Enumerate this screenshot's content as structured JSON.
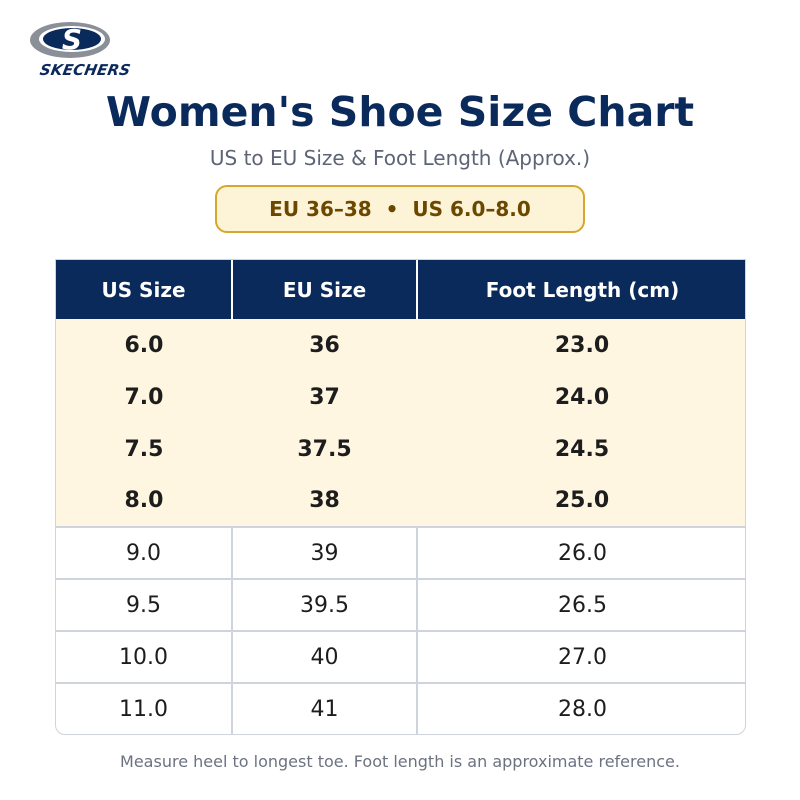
{
  "brand": {
    "name": "SKECHERS",
    "logo_letter": "S"
  },
  "title": "Women's Shoe Size Chart",
  "subtitle": "US to EU Size & Foot Length (Approx.)",
  "range_badge": "EU 36–38  •  US 6.0–8.0",
  "table": {
    "headers": [
      "US Size",
      "EU Size",
      "Foot Length (cm)"
    ],
    "rows": [
      {
        "us": "6.0",
        "eu": "36",
        "foot": "23.0",
        "highlighted": true
      },
      {
        "us": "7.0",
        "eu": "37",
        "foot": "24.0",
        "highlighted": true
      },
      {
        "us": "7.5",
        "eu": "37.5",
        "foot": "24.5",
        "highlighted": true
      },
      {
        "us": "8.0",
        "eu": "38",
        "foot": "25.0",
        "highlighted": true
      },
      {
        "us": "9.0",
        "eu": "39",
        "foot": "26.0",
        "highlighted": false
      },
      {
        "us": "9.5",
        "eu": "39.5",
        "foot": "26.5",
        "highlighted": false
      },
      {
        "us": "10.0",
        "eu": "40",
        "foot": "27.0",
        "highlighted": false
      },
      {
        "us": "11.0",
        "eu": "41",
        "foot": "28.0",
        "highlighted": false
      }
    ]
  },
  "footnote": "Measure heel to longest toe. Foot length is an approximate reference.",
  "colors": {
    "navy": "#0b2a5c",
    "highlight_row": "#fef6e1",
    "badge_fill": "#fdf3d6",
    "badge_border": "#d7a62c",
    "badge_text": "#6b4700"
  }
}
